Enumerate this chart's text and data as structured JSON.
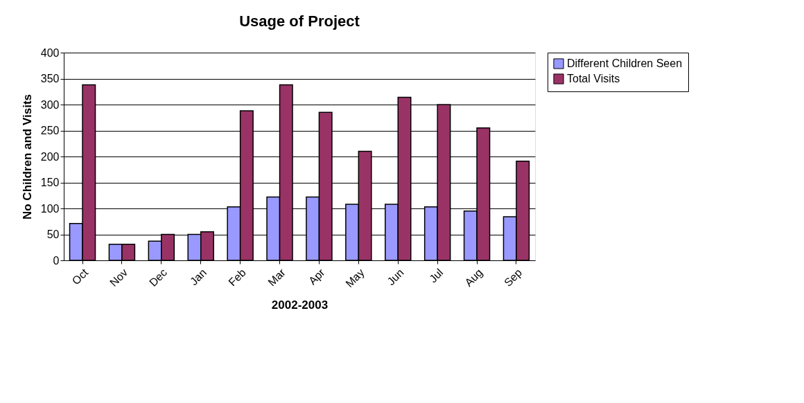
{
  "chart_data": {
    "type": "bar",
    "title": "Usage of Project",
    "xlabel": "2002-2003",
    "ylabel": "No Children and Visits",
    "categories": [
      "Oct",
      "Nov",
      "Dec",
      "Jan",
      "Feb",
      "Mar",
      "Apr",
      "May",
      "Jun",
      "Jul",
      "Aug",
      "Sep"
    ],
    "series": [
      {
        "name": "Different Children Seen",
        "color": "#9999ff",
        "values": [
          71,
          31,
          37,
          50,
          103,
          122,
          122,
          108,
          108,
          103,
          95,
          84
        ]
      },
      {
        "name": "Total Visits",
        "color": "#993366",
        "values": [
          338,
          31,
          50,
          55,
          288,
          338,
          285,
          210,
          314,
          300,
          255,
          191
        ]
      }
    ],
    "ylim": [
      0,
      400
    ],
    "yticks": [
      0,
      50,
      100,
      150,
      200,
      250,
      300,
      350,
      400
    ],
    "grid": "y",
    "legend": "right"
  }
}
